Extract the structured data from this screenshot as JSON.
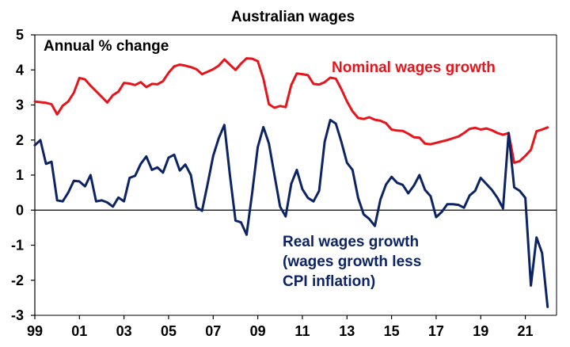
{
  "chart_data": {
    "type": "line",
    "title": "Australian wages",
    "ylabel": "Annual % change",
    "xlabel": "",
    "ylim": [
      -3,
      5
    ],
    "xlim": [
      1999,
      2022.4
    ],
    "yticks": [
      "5",
      "4",
      "3",
      "2",
      "1",
      "0",
      "-1",
      "-2",
      "-3"
    ],
    "ytick_values": [
      5,
      4,
      3,
      2,
      1,
      0,
      -1,
      -2,
      -3
    ],
    "xticks": [
      "99",
      "01",
      "03",
      "05",
      "07",
      "09",
      "11",
      "13",
      "15",
      "17",
      "19",
      "21"
    ],
    "xtick_values": [
      1999,
      2001,
      2003,
      2005,
      2007,
      2009,
      2011,
      2013,
      2015,
      2017,
      2019,
      2021
    ],
    "grid": false,
    "annotations": {
      "nominal": [
        "Nominal wages growth"
      ],
      "real": [
        "Real wages growth",
        "(wages growth less",
        "CPI inflation)"
      ]
    },
    "series": [
      {
        "name": "Nominal wages growth",
        "color": "#e8141c",
        "x": [
          1999.0,
          1999.25,
          1999.5,
          1999.75,
          2000.0,
          2000.25,
          2000.5,
          2000.75,
          2001.0,
          2001.25,
          2001.5,
          2001.75,
          2002.0,
          2002.25,
          2002.5,
          2002.75,
          2003.0,
          2003.25,
          2003.5,
          2003.75,
          2004.0,
          2004.25,
          2004.5,
          2004.75,
          2005.0,
          2005.25,
          2005.5,
          2005.75,
          2006.0,
          2006.25,
          2006.5,
          2006.75,
          2007.0,
          2007.25,
          2007.5,
          2007.75,
          2008.0,
          2008.25,
          2008.5,
          2008.75,
          2009.0,
          2009.25,
          2009.5,
          2009.75,
          2010.0,
          2010.25,
          2010.5,
          2010.75,
          2011.0,
          2011.25,
          2011.5,
          2011.75,
          2012.0,
          2012.25,
          2012.5,
          2012.75,
          2013.0,
          2013.25,
          2013.5,
          2013.75,
          2014.0,
          2014.25,
          2014.5,
          2014.75,
          2015.0,
          2015.25,
          2015.5,
          2015.75,
          2016.0,
          2016.25,
          2016.5,
          2016.75,
          2017.0,
          2017.25,
          2017.5,
          2017.75,
          2018.0,
          2018.25,
          2018.5,
          2018.75,
          2019.0,
          2019.25,
          2019.5,
          2019.75,
          2020.0,
          2020.25,
          2020.5,
          2020.75,
          2021.0,
          2021.25,
          2021.5,
          2021.75,
          2022.0
        ],
        "values": [
          3.1,
          3.08,
          3.06,
          3.02,
          2.73,
          2.98,
          3.1,
          3.35,
          3.77,
          3.73,
          3.55,
          3.39,
          3.23,
          3.07,
          3.28,
          3.38,
          3.63,
          3.61,
          3.57,
          3.65,
          3.51,
          3.6,
          3.59,
          3.68,
          3.92,
          4.1,
          4.15,
          4.12,
          4.08,
          4.02,
          3.88,
          3.95,
          4.02,
          4.12,
          4.3,
          4.15,
          4.0,
          4.18,
          4.33,
          4.32,
          4.25,
          3.75,
          3.02,
          2.92,
          2.97,
          2.94,
          3.57,
          3.9,
          3.88,
          3.85,
          3.6,
          3.58,
          3.65,
          3.78,
          3.75,
          3.45,
          3.1,
          2.82,
          2.63,
          2.6,
          2.65,
          2.58,
          2.55,
          2.48,
          2.3,
          2.27,
          2.26,
          2.18,
          2.08,
          2.07,
          1.9,
          1.88,
          1.92,
          1.96,
          2.0,
          2.05,
          2.1,
          2.2,
          2.32,
          2.35,
          2.3,
          2.33,
          2.28,
          2.2,
          2.15,
          2.2,
          1.35,
          1.4,
          1.55,
          1.72,
          2.25,
          2.3,
          2.36
        ]
      },
      {
        "name": "Real wages growth",
        "color": "#0d2464",
        "x": [
          1999.0,
          1999.25,
          1999.5,
          1999.75,
          2000.0,
          2000.25,
          2000.5,
          2000.75,
          2001.0,
          2001.25,
          2001.5,
          2001.75,
          2002.0,
          2002.25,
          2002.5,
          2002.75,
          2003.0,
          2003.25,
          2003.5,
          2003.75,
          2004.0,
          2004.25,
          2004.5,
          2004.75,
          2005.0,
          2005.25,
          2005.5,
          2005.75,
          2006.0,
          2006.25,
          2006.5,
          2006.75,
          2007.0,
          2007.25,
          2007.5,
          2007.75,
          2008.0,
          2008.25,
          2008.5,
          2008.75,
          2009.0,
          2009.25,
          2009.5,
          2009.75,
          2010.0,
          2010.25,
          2010.5,
          2010.75,
          2011.0,
          2011.25,
          2011.5,
          2011.75,
          2012.0,
          2012.25,
          2012.5,
          2012.75,
          2013.0,
          2013.25,
          2013.5,
          2013.75,
          2014.0,
          2014.25,
          2014.5,
          2014.75,
          2015.0,
          2015.25,
          2015.5,
          2015.75,
          2016.0,
          2016.25,
          2016.5,
          2016.75,
          2017.0,
          2017.25,
          2017.5,
          2017.75,
          2018.0,
          2018.25,
          2018.5,
          2018.75,
          2019.0,
          2019.25,
          2019.5,
          2019.75,
          2020.0,
          2020.25,
          2020.5,
          2020.75,
          2021.0,
          2021.25,
          2021.5,
          2021.75,
          2022.0
        ],
        "values": [
          1.85,
          2.0,
          1.32,
          1.38,
          0.28,
          0.25,
          0.5,
          0.84,
          0.82,
          0.68,
          1.0,
          0.25,
          0.28,
          0.22,
          0.1,
          0.36,
          0.25,
          0.92,
          0.98,
          1.32,
          1.53,
          1.15,
          1.22,
          1.07,
          1.5,
          1.58,
          1.13,
          1.3,
          1.0,
          0.08,
          -0.02,
          0.75,
          1.55,
          2.05,
          2.43,
          1.0,
          -0.3,
          -0.35,
          -0.7,
          0.5,
          1.8,
          2.37,
          1.9,
          1.0,
          0.1,
          -0.18,
          0.75,
          1.15,
          0.6,
          0.35,
          0.25,
          0.55,
          1.95,
          2.57,
          2.47,
          1.95,
          1.35,
          1.15,
          0.35,
          -0.12,
          -0.25,
          -0.45,
          0.3,
          0.73,
          0.95,
          0.78,
          0.72,
          0.48,
          0.7,
          1.0,
          0.58,
          0.4,
          -0.2,
          -0.05,
          0.17,
          0.17,
          0.15,
          0.07,
          0.42,
          0.55,
          0.92,
          0.75,
          0.58,
          0.35,
          0.05,
          2.2,
          0.65,
          0.55,
          0.35,
          -2.15,
          -0.78,
          -1.22,
          -2.76
        ]
      }
    ]
  }
}
